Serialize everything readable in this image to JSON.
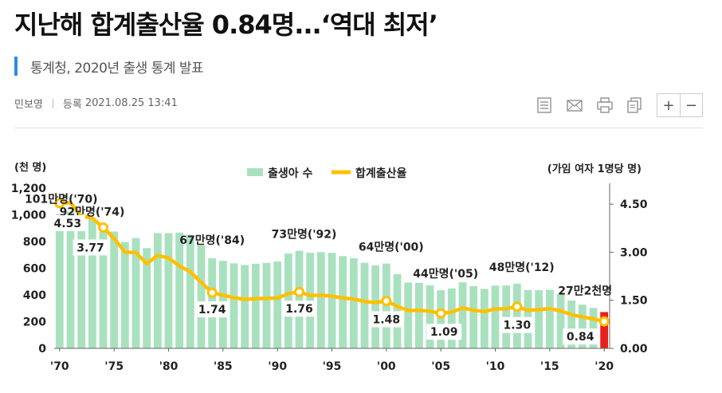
{
  "article": {
    "headline": "지난해 합계출산율 0.84명...‘역대 최저’",
    "subtitle": "통계청, 2020년 출생 통계 발표",
    "author": "민보영",
    "date_label": "등록",
    "date": "2021.08.25 13:41"
  },
  "toolbar": {
    "icons": [
      "print-list-icon",
      "mail-icon",
      "print-icon",
      "copy-icon"
    ],
    "zoom_in": "+",
    "zoom_out": "−"
  },
  "chart_data": {
    "type": "bar",
    "left_unit": "(천 명)",
    "right_unit": "(가임 여자 1명당 명)",
    "legend": [
      "출생아 수",
      "합계출산율"
    ],
    "x": [
      1970,
      1971,
      1972,
      1973,
      1974,
      1975,
      1976,
      1977,
      1978,
      1979,
      1980,
      1981,
      1982,
      1983,
      1984,
      1985,
      1986,
      1987,
      1988,
      1989,
      1990,
      1991,
      1992,
      1993,
      1994,
      1995,
      1996,
      1997,
      1998,
      1999,
      2000,
      2001,
      2002,
      2003,
      2004,
      2005,
      2006,
      2007,
      2008,
      2009,
      2010,
      2011,
      2012,
      2013,
      2014,
      2015,
      2016,
      2017,
      2018,
      2019,
      2020
    ],
    "x_tick_labels": [
      "'70",
      "'75",
      "'80",
      "'85",
      "'90",
      "'95",
      "'00",
      "'05",
      "'10",
      "'15",
      "'20"
    ],
    "births": [
      1007,
      1025,
      953,
      966,
      923,
      875,
      797,
      826,
      751,
      863,
      863,
      867,
      849,
      770,
      675,
      656,
      637,
      624,
      634,
      640,
      650,
      710,
      731,
      716,
      721,
      715,
      691,
      675,
      641,
      621,
      635,
      555,
      493,
      491,
      473,
      435,
      449,
      494,
      466,
      445,
      470,
      471,
      485,
      437,
      435,
      438,
      406,
      358,
      327,
      303,
      272
    ],
    "tfr": [
      4.53,
      4.54,
      4.12,
      4.07,
      3.77,
      3.43,
      3.0,
      2.99,
      2.64,
      2.9,
      2.82,
      2.57,
      2.39,
      2.06,
      1.74,
      1.66,
      1.58,
      1.53,
      1.55,
      1.56,
      1.57,
      1.71,
      1.76,
      1.65,
      1.66,
      1.63,
      1.57,
      1.54,
      1.46,
      1.43,
      1.48,
      1.31,
      1.18,
      1.19,
      1.16,
      1.09,
      1.13,
      1.26,
      1.19,
      1.15,
      1.23,
      1.24,
      1.3,
      1.19,
      1.21,
      1.24,
      1.17,
      1.05,
      0.98,
      0.92,
      0.84
    ],
    "left_ticks": [
      "0",
      "200",
      "400",
      "600",
      "800",
      "1,000",
      "1,200"
    ],
    "right_ticks": [
      "0.00",
      "1.50",
      "3.00",
      "4.50"
    ],
    "ylim_left": [
      0,
      1200
    ],
    "ylim_right": [
      0,
      5.0
    ],
    "birth_labels": [
      {
        "year": 1970,
        "text": "101만명('70)"
      },
      {
        "year": 1974,
        "text": "92만명('74)"
      },
      {
        "year": 1984,
        "text": "67만명('84)"
      },
      {
        "year": 1992,
        "text": "73만명('92)"
      },
      {
        "year": 2000,
        "text": "64만명('00)"
      },
      {
        "year": 2005,
        "text": "44만명('05)"
      },
      {
        "year": 2012,
        "text": "48만명('12)"
      },
      {
        "year": 2020,
        "text": "27만2천명"
      }
    ],
    "tfr_labels": [
      {
        "year": 1970,
        "text": "4.53"
      },
      {
        "year": 1974,
        "text": "3.77"
      },
      {
        "year": 1984,
        "text": "1.74"
      },
      {
        "year": 1992,
        "text": "1.76"
      },
      {
        "year": 2000,
        "text": "1.48"
      },
      {
        "year": 2005,
        "text": "1.09"
      },
      {
        "year": 2012,
        "text": "1.30"
      },
      {
        "year": 2020,
        "text": "0.84"
      }
    ],
    "colors": {
      "bar": "#a9e1bf",
      "bar_last": "#e8201c",
      "line": "#ffc000",
      "marker_fill": "#ffffff"
    },
    "grid": false
  }
}
